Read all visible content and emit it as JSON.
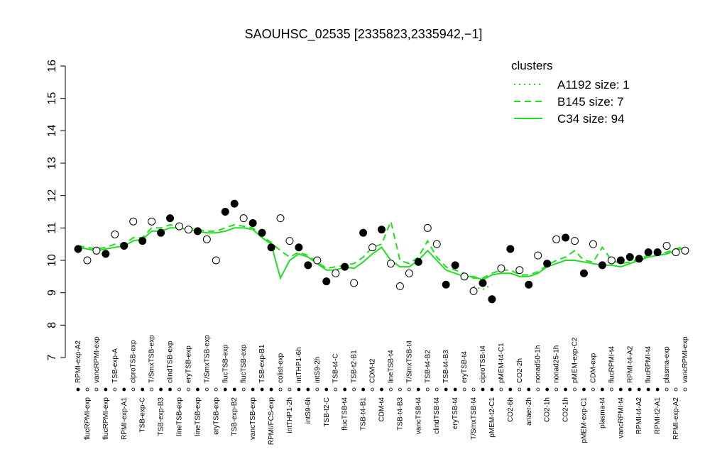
{
  "chart_data": {
    "type": "line",
    "title": "SAOUHSC_02535 [2335823,2335942,−1]",
    "categories": [
      "RPMI-exp-A2",
      "flucRPMI-exp",
      "vancRPMI-exp",
      "flucRPMI-exp",
      "TSB-exp-A",
      "RPMI-exp-A1",
      "ciproTSB-exp",
      "TSB-exp-C",
      "T/SmxTSB-exp",
      "TSB-exp-B3",
      "clindTSB-exp",
      "lineTSB-exp",
      "eryTSB-exp",
      "lineTSB-exp",
      "T/SmxTSB-exp",
      "eryTSB-exp",
      "flucTSB-exp",
      "TSB-exp-B2",
      "flucTSB-exp",
      "vancTSB-exp",
      "TSB-exp-B1",
      "RPMI/FCS-exp",
      "colist-exp",
      "intTHP1-2h",
      "intTHP1-6h",
      "intS9-6h",
      "intS9-2h",
      "TSB-t2-C",
      "TSB-t4-C",
      "flucTSB-t4",
      "TSB-t2-B1",
      "TSB-t4-B1",
      "CDM-t2",
      "CDM-t4",
      "lineTSB-t4",
      "TSB-t4-B3",
      "T/SmxTSB-t4",
      "vancTSB-t4",
      "TSB-t4-B2",
      "clindTSB-t4",
      "TSB-t4-B3",
      "eryTSB-t4",
      "eryTSB-t4",
      "T/SmxTSB-t4",
      "ciproTSB-t4",
      "pMEM-t2-C1",
      "pMEM-t4-C1",
      "CO2-6h",
      "CO2-2h",
      "anaer-2h",
      "nonad50-1h",
      "CO2-1h",
      "nonad25-1h",
      "CO2-1h",
      "pMEM-exp-C2",
      "pMEM-exp-C1",
      "CDM-exp",
      "plasma-t4",
      "flucRPMI-t4",
      "vancRPMI-t4",
      "RPMI-t4-A2",
      "RPMI-t4-A2",
      "flucRPMI-t4",
      "RPMI-t2-A1",
      "plasma-exp",
      "RPMI-exp-A2",
      "vancRPMI-exp"
    ],
    "points": {
      "values": [
        10.35,
        10.0,
        10.3,
        10.2,
        10.8,
        10.45,
        11.2,
        10.6,
        11.2,
        10.85,
        11.3,
        11.05,
        10.95,
        10.9,
        10.65,
        10.0,
        11.5,
        11.75,
        11.3,
        11.15,
        10.85,
        10.4,
        11.3,
        10.6,
        10.4,
        9.85,
        10.0,
        9.35,
        9.6,
        9.8,
        9.3,
        10.85,
        10.4,
        10.95,
        9.9,
        9.2,
        9.6,
        9.95,
        11.0,
        10.5,
        9.25,
        9.85,
        9.5,
        9.05,
        9.3,
        8.8,
        9.75,
        10.35,
        9.7,
        9.25,
        10.15,
        9.9,
        10.65,
        10.7,
        10.6,
        9.6,
        10.5,
        9.85,
        10.0,
        10.0,
        10.1,
        10.05,
        10.25,
        10.25,
        10.45,
        10.25,
        10.3
      ],
      "filled": [
        true,
        false,
        false,
        true,
        false,
        true,
        false,
        true,
        false,
        true,
        true,
        false,
        false,
        true,
        false,
        false,
        true,
        true,
        false,
        true,
        true,
        true,
        false,
        false,
        true,
        true,
        false,
        true,
        false,
        true,
        false,
        true,
        false,
        true,
        false,
        false,
        false,
        true,
        false,
        false,
        true,
        true,
        false,
        false,
        true,
        true,
        false,
        true,
        false,
        true,
        false,
        true,
        false,
        true,
        false,
        true,
        false,
        true,
        false,
        true,
        true,
        true,
        true,
        true,
        false,
        false,
        false
      ]
    },
    "series": [
      {
        "name": "A1192 size: 1",
        "color": "#22dd22",
        "dash": "dotted",
        "values": [
          null,
          null,
          null,
          null,
          null,
          null,
          null,
          null,
          null,
          null,
          null,
          null,
          null,
          null,
          null,
          null,
          null,
          null,
          null,
          null,
          null,
          null,
          null,
          null,
          null,
          null,
          null,
          null,
          null,
          null,
          null,
          null,
          null,
          null,
          null,
          null,
          null,
          null,
          null,
          null,
          null,
          null,
          null,
          9.2,
          9.1,
          9.25,
          null,
          null,
          null,
          null,
          null,
          null,
          null,
          null,
          null,
          null,
          null,
          null,
          null,
          null,
          null,
          null,
          null,
          null,
          null,
          null,
          null
        ]
      },
      {
        "name": "B145 size: 7",
        "color": "#22dd22",
        "dash": "dashed",
        "values": [
          10.45,
          10.4,
          10.35,
          10.4,
          10.5,
          10.5,
          10.7,
          10.7,
          11.0,
          11.0,
          11.1,
          11.05,
          11.0,
          10.95,
          10.9,
          10.9,
          11.0,
          11.1,
          11.05,
          11.0,
          10.75,
          10.55,
          10.3,
          10.1,
          10.25,
          10.15,
          9.95,
          9.75,
          9.8,
          9.85,
          9.9,
          10.1,
          10.4,
          10.5,
          11.2,
          10.0,
          9.9,
          10.1,
          10.6,
          10.1,
          9.8,
          9.7,
          9.6,
          9.45,
          9.45,
          9.6,
          9.7,
          9.7,
          9.55,
          9.55,
          9.65,
          9.85,
          10.0,
          10.1,
          10.3,
          10.0,
          9.95,
          10.4,
          10.0,
          9.9,
          9.95,
          10.05,
          10.15,
          10.2,
          10.25,
          10.35,
          10.45
        ]
      },
      {
        "name": "C34 size: 94",
        "color": "#22dd22",
        "dash": "solid",
        "values": [
          10.4,
          10.35,
          10.3,
          10.35,
          10.4,
          10.45,
          10.6,
          10.65,
          10.9,
          10.9,
          11.0,
          11.0,
          10.95,
          10.9,
          10.85,
          10.85,
          10.9,
          11.0,
          11.0,
          10.95,
          10.7,
          10.5,
          9.45,
          10.0,
          10.2,
          10.1,
          9.9,
          9.7,
          9.7,
          9.8,
          9.75,
          9.95,
          10.2,
          10.4,
          10.0,
          9.8,
          9.8,
          10.0,
          10.3,
          10.0,
          9.7,
          9.6,
          9.5,
          9.5,
          9.4,
          9.55,
          9.6,
          9.6,
          9.5,
          9.5,
          9.6,
          9.8,
          9.9,
          10.0,
          10.0,
          9.95,
          9.9,
          9.85,
          9.85,
          9.8,
          9.9,
          10.0,
          10.1,
          10.15,
          10.2,
          10.3,
          10.4
        ]
      }
    ],
    "legend_title": "clusters",
    "legend": "top-right",
    "ylim": [
      7,
      16
    ],
    "yticks": [
      7,
      8,
      9,
      10,
      11,
      12,
      13,
      14,
      15,
      16
    ]
  }
}
